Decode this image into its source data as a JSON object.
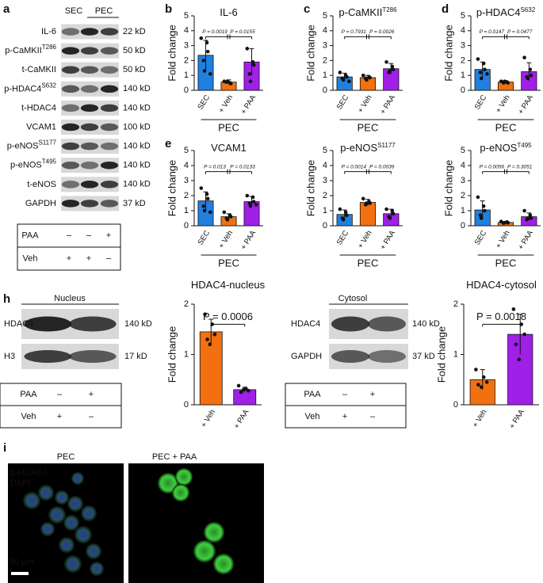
{
  "panel_a": {
    "label": "a",
    "header": [
      "SEC",
      "PEC"
    ],
    "rows": [
      {
        "name": "IL-6",
        "size": "22 kD"
      },
      {
        "name": "p-CaMKII",
        "superscript": "T286",
        "size": "50 kD"
      },
      {
        "name": "t-CaMKII",
        "size": "50 kD"
      },
      {
        "name": "p-HDAC4",
        "superscript": "S632",
        "size": "140 kD"
      },
      {
        "name": "t-HDAC4",
        "size": "140 kD"
      },
      {
        "name": "VCAM1",
        "size": "100 kD"
      },
      {
        "name": "p-eNOS",
        "superscript": "S1177",
        "size": "140 kD"
      },
      {
        "name": "p-eNOS",
        "superscript": "T495",
        "size": "140 kD"
      },
      {
        "name": "t-eNOS",
        "size": "140 kD"
      },
      {
        "name": "GAPDH",
        "size": "37 kD"
      }
    ],
    "treatment": [
      {
        "name": "PAA",
        "marks": [
          "–",
          "–",
          "+"
        ]
      },
      {
        "name": "Veh",
        "marks": [
          "+",
          "+",
          "–"
        ]
      }
    ]
  },
  "chart_data": [
    {
      "type": "bar",
      "panel": "b",
      "title": "IL-6",
      "ylabel": "Fold change",
      "categories": [
        "SEC",
        "+ Veh",
        "+ PAA"
      ],
      "group_label": "PEC",
      "colors": [
        "#1f80e0",
        "#f2700f",
        "#a020e8"
      ],
      "values": [
        2.35,
        0.55,
        1.9
      ],
      "errors": [
        1.0,
        0.15,
        0.9
      ],
      "points": [
        [
          3.5,
          3.2,
          2.6,
          2.0,
          1.3,
          1.1
        ],
        [
          0.6,
          0.5,
          0.45,
          0.55,
          0.6
        ],
        [
          2.8,
          1.9,
          1.7,
          1.1,
          0.6
        ]
      ],
      "annotations": [
        "P = 0.0019",
        "P = 0.0155"
      ],
      "ylim": [
        0,
        5
      ],
      "yticks": [
        0,
        1,
        2,
        3,
        4,
        5
      ]
    },
    {
      "type": "bar",
      "panel": "c",
      "title": "p-CaMKII",
      "title_superscript": "T286",
      "ylabel": "Fold change",
      "categories": [
        "SEC",
        "+ Veh",
        "+ PAA"
      ],
      "group_label": "PEC",
      "colors": [
        "#1f80e0",
        "#f2700f",
        "#a020e8"
      ],
      "values": [
        0.9,
        0.85,
        1.45
      ],
      "errors": [
        0.25,
        0.15,
        0.35
      ],
      "points": [
        [
          1.2,
          1.0,
          0.9,
          0.8,
          0.7,
          0.6
        ],
        [
          1.0,
          0.9,
          0.85,
          0.8,
          0.7
        ],
        [
          1.9,
          1.6,
          1.4,
          1.2,
          1.3
        ]
      ],
      "annotations": [
        "P = 0.7931",
        "P = 0.0026"
      ],
      "ylim": [
        0,
        5
      ],
      "yticks": [
        0,
        1,
        2,
        3,
        4,
        5
      ]
    },
    {
      "type": "bar",
      "panel": "d",
      "title": "p-HDAC4",
      "title_superscript": "S632",
      "ylabel": "Fold change",
      "categories": [
        "SEC",
        "+ Veh",
        "+ PAA"
      ],
      "group_label": "PEC",
      "colors": [
        "#1f80e0",
        "#f2700f",
        "#a020e8"
      ],
      "values": [
        1.4,
        0.55,
        1.25
      ],
      "errors": [
        0.5,
        0.1,
        0.6
      ],
      "points": [
        [
          2.1,
          1.8,
          1.4,
          1.2,
          0.8,
          1.1
        ],
        [
          0.6,
          0.55,
          0.5,
          0.5,
          0.6
        ],
        [
          2.2,
          1.4,
          1.0,
          0.9,
          0.8
        ]
      ],
      "annotations": [
        "P = 0.0147",
        "P = 0.0477"
      ],
      "ylim": [
        0,
        5
      ],
      "yticks": [
        0,
        1,
        2,
        3,
        4,
        5
      ]
    },
    {
      "type": "bar",
      "panel": "e",
      "title": "VCAM1",
      "ylabel": "Fold change",
      "categories": [
        "SEC",
        "+ Veh",
        "+ PAA"
      ],
      "group_label": "PEC",
      "colors": [
        "#1f80e0",
        "#f2700f",
        "#a020e8"
      ],
      "values": [
        1.65,
        0.6,
        1.6
      ],
      "errors": [
        0.6,
        0.2,
        0.35
      ],
      "points": [
        [
          2.5,
          2.1,
          1.8,
          1.3,
          1.0,
          0.9
        ],
        [
          0.9,
          0.7,
          0.6,
          0.5,
          0.4
        ],
        [
          2.0,
          1.9,
          1.6,
          1.5,
          1.3,
          1.4
        ]
      ],
      "annotations": [
        "P = 0.013",
        "P = 0.0133"
      ],
      "ylim": [
        0,
        5
      ],
      "yticks": [
        0,
        1,
        2,
        3,
        4,
        5
      ]
    },
    {
      "type": "bar",
      "title": "p-eNOS",
      "title_superscript": "S1177",
      "ylabel": "Fold change",
      "categories": [
        "SEC",
        "+ Veh",
        "+ PAA"
      ],
      "group_label": "PEC",
      "colors": [
        "#1f80e0",
        "#f2700f",
        "#a020e8"
      ],
      "values": [
        0.75,
        1.55,
        0.8
      ],
      "errors": [
        0.3,
        0.2,
        0.3
      ],
      "points": [
        [
          1.1,
          0.9,
          0.7,
          0.5,
          0.4
        ],
        [
          1.8,
          1.6,
          1.5,
          1.4,
          1.5
        ],
        [
          1.1,
          1.0,
          0.8,
          0.6,
          0.5
        ]
      ],
      "annotations": [
        "P = 0.0014",
        "P = 0.0039"
      ],
      "ylim": [
        0,
        5
      ],
      "yticks": [
        0,
        1,
        2,
        3,
        4,
        5
      ]
    },
    {
      "type": "bar",
      "title": "p-eNOS",
      "title_superscript": "T495",
      "ylabel": "Fold change",
      "categories": [
        "SEC",
        "+ Veh",
        "+ PAA"
      ],
      "group_label": "PEC",
      "colors": [
        "#1f80e0",
        "#f2700f",
        "#a020e8"
      ],
      "values": [
        1.05,
        0.22,
        0.6
      ],
      "errors": [
        0.6,
        0.05,
        0.25
      ],
      "points": [
        [
          1.9,
          1.3,
          1.0,
          0.7,
          0.5
        ],
        [
          0.28,
          0.25,
          0.2,
          0.18,
          0.2
        ],
        [
          1.0,
          0.7,
          0.5,
          0.4,
          0.5
        ]
      ],
      "annotations": [
        "P = 0.0056",
        "P = 0.3051"
      ],
      "ylim": [
        0,
        5
      ],
      "yticks": [
        0,
        1,
        2,
        3,
        4,
        5
      ]
    },
    {
      "type": "bar",
      "title": "HDAC4-nucleus",
      "ylabel": "Fold change",
      "categories": [
        "+ Veh",
        "+ PAA"
      ],
      "colors": [
        "#f2700f",
        "#a020e8"
      ],
      "values": [
        1.45,
        0.3
      ],
      "errors": [
        0.25,
        0.05
      ],
      "points": [
        [
          1.8,
          1.6,
          1.4,
          1.3,
          1.2
        ],
        [
          0.38,
          0.32,
          0.28,
          0.25,
          0.3
        ]
      ],
      "annotations": [
        "P = 0.0006"
      ],
      "ylim": [
        0,
        2
      ],
      "yticks": [
        0,
        1,
        2
      ]
    },
    {
      "type": "bar",
      "title": "HDAC4-cytosol",
      "ylabel": "Fold change",
      "categories": [
        "+ Veh",
        "+ PAA"
      ],
      "colors": [
        "#f2700f",
        "#a020e8"
      ],
      "values": [
        0.5,
        1.4
      ],
      "errors": [
        0.2,
        0.4
      ],
      "points": [
        [
          0.7,
          0.55,
          0.45,
          0.4,
          0.35
        ],
        [
          1.9,
          1.6,
          1.4,
          1.2,
          0.9
        ]
      ],
      "annotations": [
        "P = 0.0018"
      ],
      "ylim": [
        0,
        2
      ],
      "yticks": [
        0,
        1,
        2
      ]
    }
  ],
  "panel_h": {
    "label": "h",
    "blots": [
      {
        "title": "Nucleus",
        "rows": [
          {
            "name": "HDAC4",
            "size": "140 kD"
          },
          {
            "name": "H3",
            "size": "17 kD"
          }
        ],
        "treatment": [
          {
            "name": "PAA",
            "marks": [
              "–",
              "+"
            ]
          },
          {
            "name": "Veh",
            "marks": [
              "+",
              "–"
            ]
          }
        ]
      },
      {
        "title": "Cytosol",
        "rows": [
          {
            "name": "HDAC4",
            "size": "140 kD"
          },
          {
            "name": "GAPDH",
            "size": "37 kD"
          }
        ],
        "treatment": [
          {
            "name": "PAA",
            "marks": [
              "–",
              "+"
            ]
          },
          {
            "name": "Veh",
            "marks": [
              "+",
              "–"
            ]
          }
        ]
      }
    ]
  },
  "panel_i": {
    "label": "i",
    "images": [
      {
        "title": "PEC"
      },
      {
        "title": "PEC + PAA"
      }
    ],
    "legend": [
      {
        "name": "p-HDAC4",
        "color": "#3fdc3f"
      },
      {
        "name": "DAPI",
        "color": "#3a55ff"
      }
    ],
    "scale_bar": "50 μm"
  }
}
